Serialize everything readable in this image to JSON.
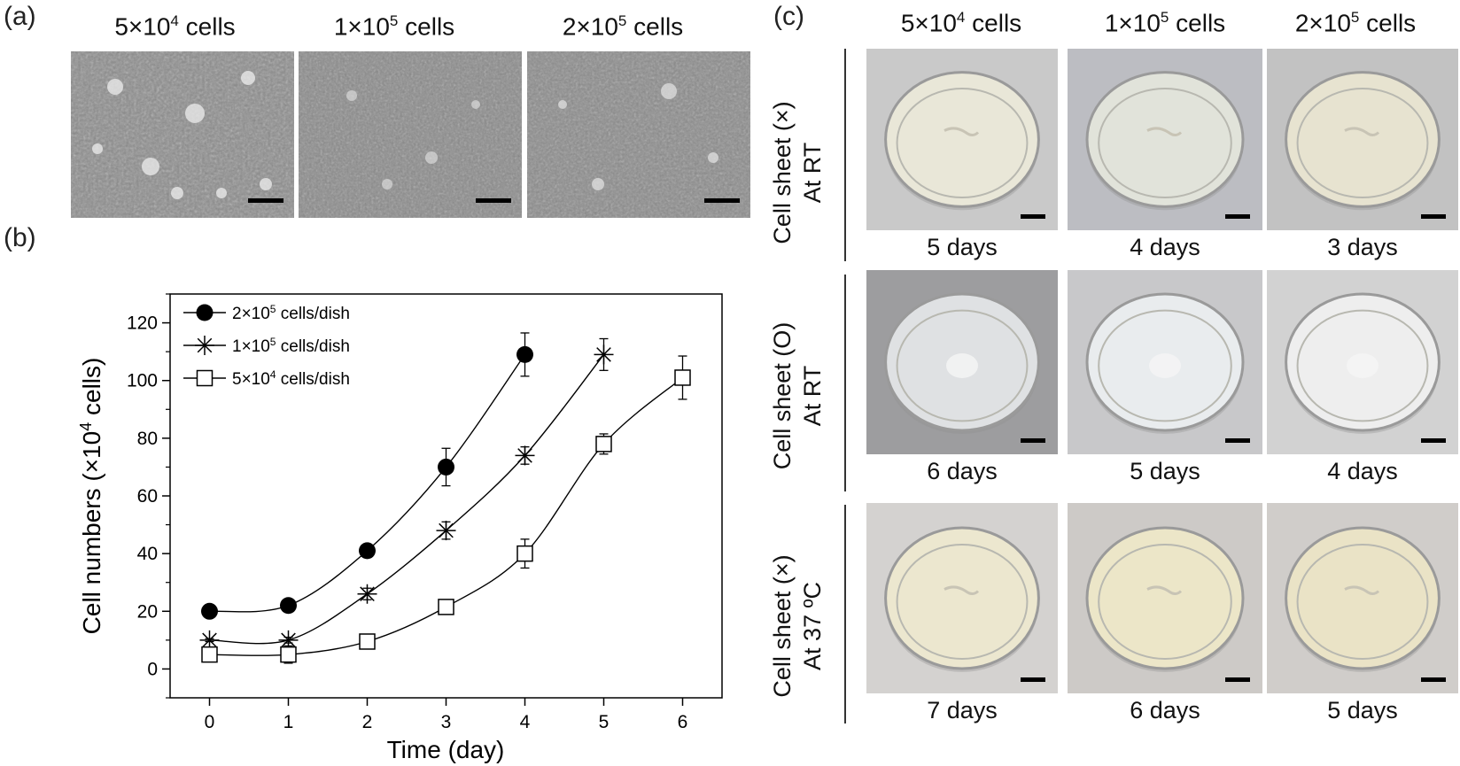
{
  "panel_a": {
    "label": "(a)",
    "columns": [
      {
        "base": "5×10",
        "exp": "4",
        "suffix": " cells"
      },
      {
        "base": "1×10",
        "exp": "5",
        "suffix": " cells"
      },
      {
        "base": "2×10",
        "exp": "5",
        "suffix": " cells"
      }
    ]
  },
  "panel_b": {
    "label": "(b)"
  },
  "panel_c": {
    "label": "(c)",
    "columns": [
      {
        "base": "5×10",
        "exp": "4",
        "suffix": " cells"
      },
      {
        "base": "1×10",
        "exp": "5",
        "suffix": " cells"
      },
      {
        "base": "2×10",
        "exp": "5",
        "suffix": " cells"
      }
    ],
    "rows": [
      {
        "line1": "Cell sheet (×)",
        "line2": "At RT",
        "days": [
          "5 days",
          "4 days",
          "3 days"
        ]
      },
      {
        "line1": "Cell sheet (O)",
        "line2": "At RT",
        "days": [
          "6 days",
          "5 days",
          "4 days"
        ]
      },
      {
        "line1": "Cell sheet (×)",
        "line2": "At 37 ºC",
        "days": [
          "7 days",
          "6 days",
          "5 days"
        ]
      }
    ]
  },
  "chart_data": {
    "type": "line",
    "xlabel": "Time (day)",
    "ylabel_base": "Cell numbers (×10",
    "ylabel_exp": "4",
    "ylabel_suffix": " cells)",
    "xlim": [
      -0.5,
      6.5
    ],
    "ylim": [
      -10,
      130
    ],
    "xticks": [
      0,
      1,
      2,
      3,
      4,
      5,
      6
    ],
    "yticks": [
      0,
      20,
      40,
      60,
      80,
      100,
      120
    ],
    "grid": false,
    "legend_position": "top-left",
    "series": [
      {
        "name_base": "2×10",
        "name_exp": "5",
        "name_suffix": " cells/dish",
        "marker": "filled-circle",
        "x": [
          0,
          1,
          2,
          3,
          4
        ],
        "values": [
          20,
          22,
          41,
          70,
          109
        ],
        "errors": [
          1,
          1,
          1.5,
          6.5,
          7.5
        ]
      },
      {
        "name_base": "1×10",
        "name_exp": "5",
        "name_suffix": " cells/dish",
        "marker": "star",
        "x": [
          0,
          1,
          2,
          3,
          4,
          5
        ],
        "values": [
          10,
          10,
          26,
          48,
          74,
          109
        ],
        "errors": [
          0.5,
          1,
          2,
          3,
          3,
          5.5
        ]
      },
      {
        "name_base": "5×10",
        "name_exp": "4",
        "name_suffix": " cells/dish",
        "marker": "open-square",
        "x": [
          0,
          1,
          2,
          3,
          4,
          5,
          6
        ],
        "values": [
          5,
          5,
          9.5,
          21.5,
          40,
          78,
          101
        ],
        "errors": [
          0.5,
          3,
          2,
          2.5,
          5,
          3.5,
          7.5
        ]
      }
    ]
  }
}
